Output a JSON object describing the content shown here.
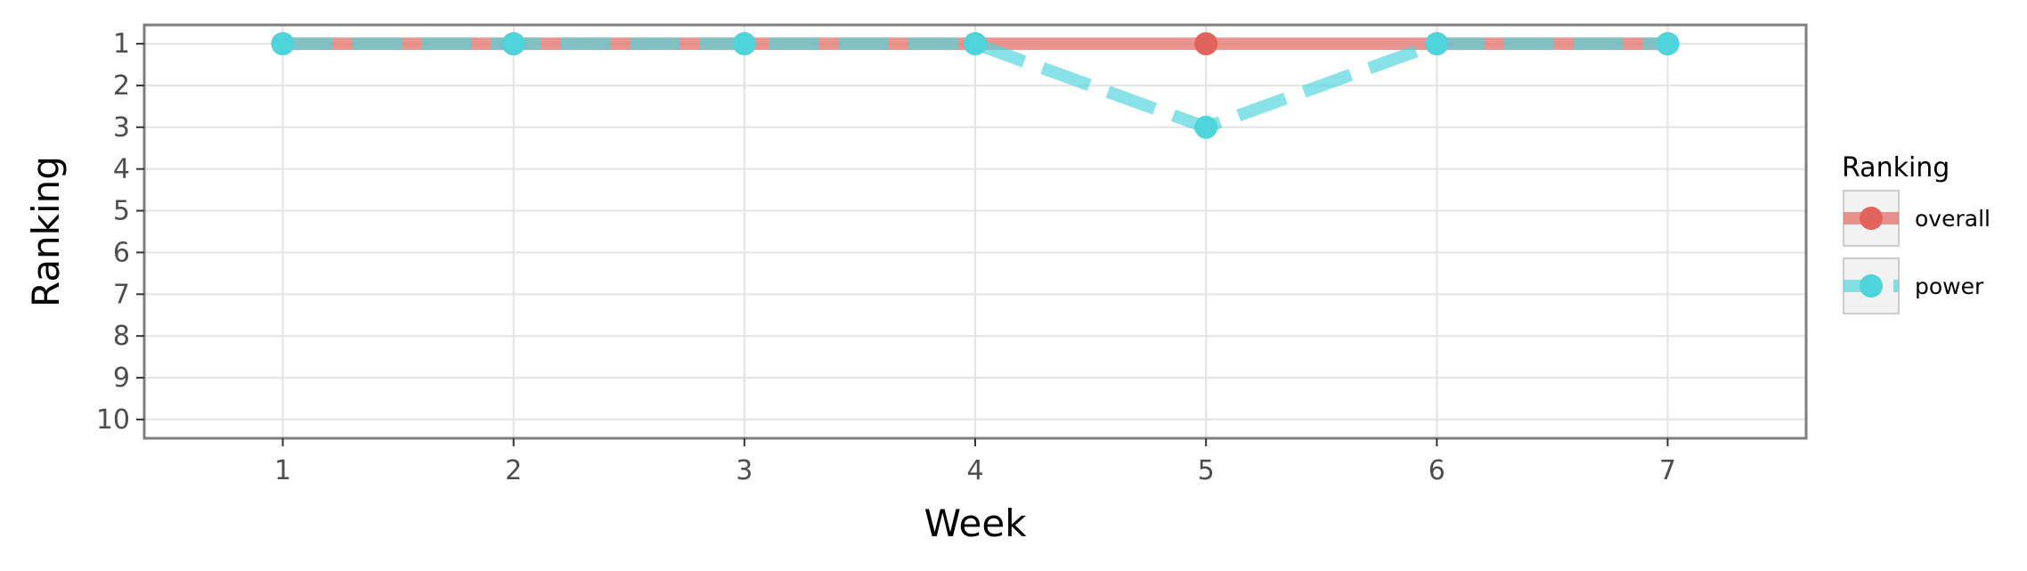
{
  "chart_data": {
    "type": "line",
    "title": "",
    "xlabel": "Week",
    "ylabel": "Ranking",
    "x": [
      1,
      2,
      3,
      4,
      5,
      6,
      7
    ],
    "x_ticks": [
      "1",
      "2",
      "3",
      "4",
      "5",
      "6",
      "7"
    ],
    "xlim": [
      0.4,
      7.6
    ],
    "y_ticks": [
      "1",
      "2",
      "3",
      "4",
      "5",
      "6",
      "7",
      "8",
      "9",
      "10"
    ],
    "ylim": [
      10.45,
      0.55
    ],
    "y_reversed": true,
    "grid": true,
    "legend": {
      "title": "Ranking",
      "position": "right"
    },
    "series": [
      {
        "name": "overall",
        "values": [
          1,
          1,
          1,
          1,
          1,
          1,
          1
        ],
        "color": "#E0635C",
        "linestyle": "solid"
      },
      {
        "name": "power",
        "values": [
          1,
          1,
          1,
          1,
          3,
          1,
          1
        ],
        "color": "#4FD4DC",
        "linestyle": "dashed"
      }
    ]
  }
}
